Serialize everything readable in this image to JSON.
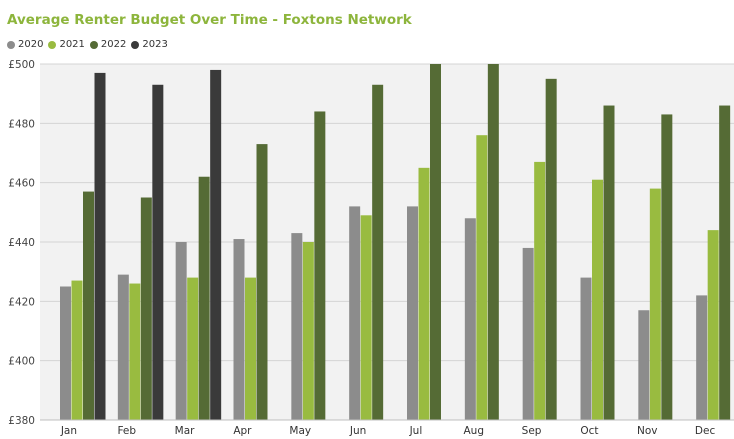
{
  "chart_data": {
    "type": "bar",
    "title": "Average Renter Budget Over Time - Foxtons Network",
    "xlabel": "",
    "ylabel": "",
    "ylim": [
      380,
      500
    ],
    "yticks": [
      380,
      400,
      420,
      440,
      460,
      480,
      500
    ],
    "ytick_labels": [
      "£380",
      "£400",
      "£420",
      "£440",
      "£460",
      "£480",
      "£500"
    ],
    "grid": true,
    "legend_position": "top-left",
    "categories": [
      "Jan",
      "Feb",
      "Mar",
      "Apr",
      "May",
      "Jun",
      "Jul",
      "Aug",
      "Sep",
      "Oct",
      "Nov",
      "Dec"
    ],
    "series": [
      {
        "name": "2020",
        "color": "#8c8c8c",
        "values": [
          425,
          429,
          440,
          441,
          443,
          452,
          452,
          448,
          438,
          428,
          417,
          422
        ]
      },
      {
        "name": "2021",
        "color": "#99bb40",
        "values": [
          427,
          426,
          428,
          428,
          440,
          449,
          465,
          476,
          467,
          461,
          458,
          444
        ]
      },
      {
        "name": "2022",
        "color": "#556b35",
        "values": [
          457,
          455,
          462,
          473,
          484,
          493,
          500,
          500,
          495,
          486,
          483,
          486
        ]
      },
      {
        "name": "2023",
        "color": "#3a3a3a",
        "values": [
          497,
          493,
          498,
          null,
          null,
          null,
          null,
          null,
          null,
          null,
          null,
          null
        ]
      }
    ]
  }
}
